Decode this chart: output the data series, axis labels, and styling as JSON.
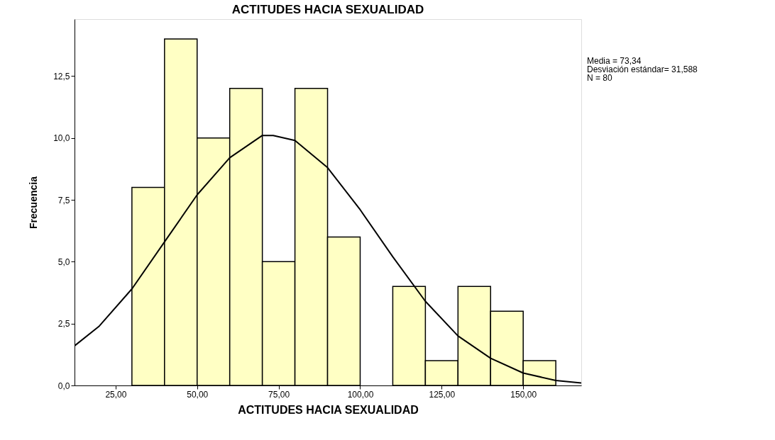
{
  "chart_data": {
    "type": "histogram",
    "title": "ACTITUDES HACIA SEXUALIDAD",
    "xlabel": "ACTITUDES HACIA SEXUALIDAD",
    "ylabel": "Frecuencia",
    "bins": [
      30,
      40,
      50,
      60,
      70,
      80,
      90,
      100,
      110,
      120,
      130,
      140,
      150,
      160
    ],
    "values": [
      8,
      14,
      10,
      12,
      5,
      12,
      6,
      0,
      4,
      1,
      4,
      3,
      1
    ],
    "color": "#ffffc4",
    "series": [
      {
        "type": "line",
        "color": "#000000",
        "x": [
          12.4,
          20,
          30,
          40,
          50,
          60,
          70,
          73.34,
          80,
          90,
          100,
          110,
          120,
          130,
          140,
          150,
          160,
          167.8
        ],
        "values": [
          1.6,
          2.4,
          3.9,
          5.8,
          7.7,
          9.2,
          10.1,
          10.1,
          9.9,
          8.8,
          7.1,
          5.2,
          3.4,
          2.0,
          1.1,
          0.5,
          0.2,
          0.1
        ]
      }
    ],
    "xlim": [
      12.4,
      167.8
    ],
    "xticks": [
      {
        "value": 25,
        "label": "25,00"
      },
      {
        "value": 50,
        "label": "50,00"
      },
      {
        "value": 75,
        "label": "75,00"
      },
      {
        "value": 100,
        "label": "100,00"
      },
      {
        "value": 125,
        "label": "125,00"
      },
      {
        "value": 150,
        "label": "150,00"
      }
    ],
    "ylim": [
      0,
      14.8
    ],
    "yticks": [
      {
        "value": 0,
        "label": "0,0"
      },
      {
        "value": 2.5,
        "label": "2,5"
      },
      {
        "value": 5,
        "label": "5,0"
      },
      {
        "value": 7.5,
        "label": "7,5"
      },
      {
        "value": 10,
        "label": "10,0"
      },
      {
        "value": 12.5,
        "label": "12,5"
      }
    ],
    "annotations": [
      "Media = 73,34",
      "Desviación estándar= 31,588",
      "N = 80"
    ],
    "grid": false
  }
}
